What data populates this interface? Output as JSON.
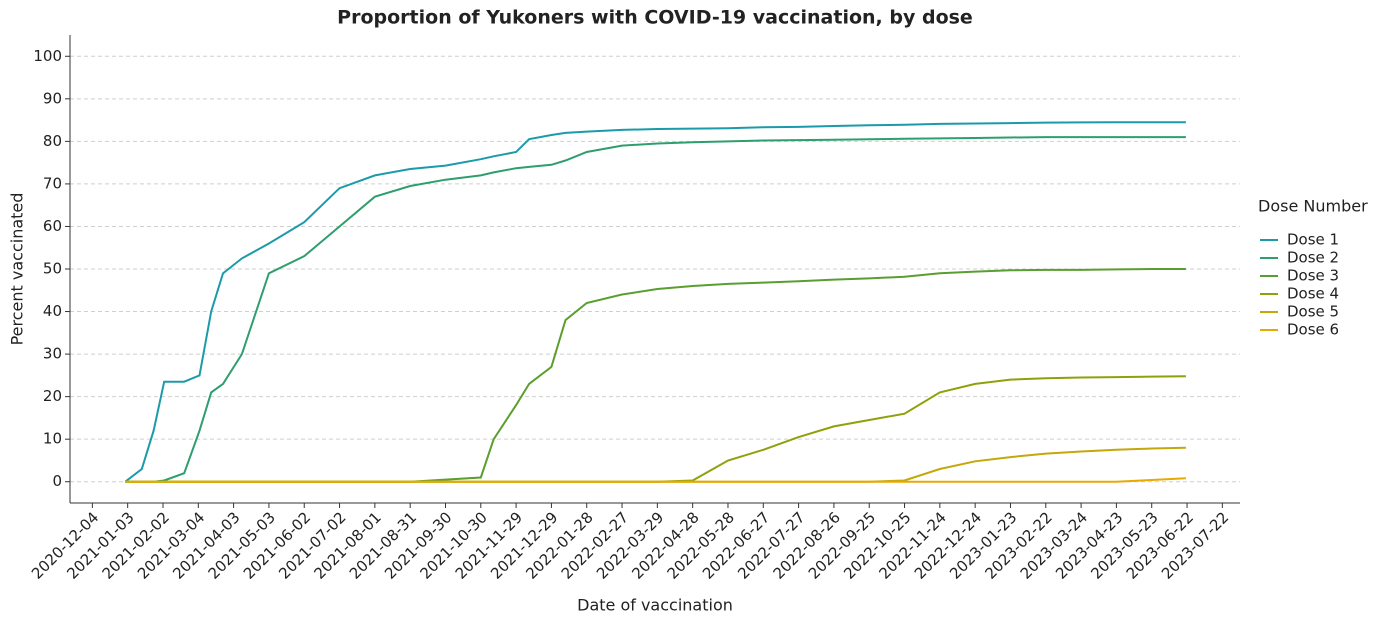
{
  "chart_data": {
    "type": "line",
    "title": "Proportion of Yukoners with COVID-19 vaccination, by dose",
    "x_label": "Date of vaccination",
    "y_label": "Percent vaccinated",
    "legend_title": "Dose Number",
    "legend": "right",
    "grid": true,
    "x": [
      "2021-01-01",
      "2021-01-15",
      "2021-01-25",
      "2021-02-03",
      "2021-02-20",
      "2021-03-05",
      "2021-03-15",
      "2021-03-25",
      "2021-04-10",
      "2021-05-03",
      "2021-06-02",
      "2021-07-02",
      "2021-08-01",
      "2021-08-31",
      "2021-09-30",
      "2021-10-30",
      "2021-11-10",
      "2021-11-29",
      "2021-12-10",
      "2021-12-29",
      "2022-01-10",
      "2022-01-28",
      "2022-02-27",
      "2022-03-29",
      "2022-04-28",
      "2022-05-28",
      "2022-06-27",
      "2022-07-27",
      "2022-08-26",
      "2022-09-25",
      "2022-10-25",
      "2022-11-24",
      "2022-12-24",
      "2023-01-23",
      "2023-02-22",
      "2023-03-24",
      "2023-04-23",
      "2023-05-23",
      "2023-06-21"
    ],
    "series": [
      {
        "name": "Dose 1",
        "color": "#1b9aaa",
        "values": [
          0,
          3,
          12,
          23.5,
          23.5,
          25,
          40,
          49,
          52.5,
          56,
          61,
          69,
          72,
          73.5,
          74.3,
          75.8,
          76.5,
          77.5,
          80.5,
          81.5,
          82,
          82.3,
          82.7,
          82.9,
          83,
          83.1,
          83.3,
          83.4,
          83.6,
          83.8,
          83.9,
          84.1,
          84.2,
          84.3,
          84.4,
          84.45,
          84.5,
          84.5,
          84.5
        ]
      },
      {
        "name": "Dose 2",
        "color": "#2e9e6e",
        "values": [
          0,
          0,
          0,
          0.3,
          2,
          12,
          21,
          23,
          30,
          49,
          53,
          60,
          67,
          69.5,
          71,
          72,
          72.7,
          73.7,
          74,
          74.5,
          75.5,
          77.5,
          79,
          79.5,
          79.8,
          80,
          80.2,
          80.3,
          80.4,
          80.5,
          80.6,
          80.7,
          80.8,
          80.9,
          81,
          81,
          81,
          81,
          81
        ]
      },
      {
        "name": "Dose 3",
        "color": "#5a9e2f",
        "values": [
          0,
          0,
          0,
          0,
          0,
          0,
          0,
          0,
          0,
          0,
          0,
          0,
          0,
          0,
          0.5,
          1,
          10,
          18,
          23,
          27,
          38,
          42,
          44,
          45.3,
          46,
          46.5,
          46.8,
          47.1,
          47.5,
          47.8,
          48.2,
          49,
          49.4,
          49.7,
          49.8,
          49.8,
          49.9,
          50,
          50
        ]
      },
      {
        "name": "Dose 4",
        "color": "#8fa10a",
        "values": [
          0,
          0,
          0,
          0,
          0,
          0,
          0,
          0,
          0,
          0,
          0,
          0,
          0,
          0,
          0,
          0,
          0,
          0,
          0,
          0,
          0,
          0,
          0,
          0,
          0.3,
          5,
          7.5,
          10.5,
          13,
          14.5,
          16,
          21,
          23,
          24,
          24.3,
          24.5,
          24.6,
          24.7,
          24.8
        ]
      },
      {
        "name": "Dose 5",
        "color": "#c4a80a",
        "values": [
          0,
          0,
          0,
          0,
          0,
          0,
          0,
          0,
          0,
          0,
          0,
          0,
          0,
          0,
          0,
          0,
          0,
          0,
          0,
          0,
          0,
          0,
          0,
          0,
          0,
          0,
          0,
          0,
          0,
          0,
          0.3,
          3,
          4.8,
          5.8,
          6.6,
          7.1,
          7.5,
          7.8,
          8
        ]
      },
      {
        "name": "Dose 6",
        "color": "#e8a900",
        "values": [
          0,
          0,
          0,
          0,
          0,
          0,
          0,
          0,
          0,
          0,
          0,
          0,
          0,
          0,
          0,
          0,
          0,
          0,
          0,
          0,
          0,
          0,
          0,
          0,
          0,
          0,
          0,
          0,
          0,
          0,
          0,
          0,
          0,
          0,
          0,
          0,
          0,
          0.4,
          0.8
        ]
      }
    ],
    "xlim": [
      "2020-11-15",
      "2023-08-06"
    ],
    "xticks": [
      "2020-12-04",
      "2021-01-03",
      "2021-02-02",
      "2021-03-04",
      "2021-04-03",
      "2021-05-03",
      "2021-06-02",
      "2021-07-02",
      "2021-08-01",
      "2021-08-31",
      "2021-09-30",
      "2021-10-30",
      "2021-11-29",
      "2021-12-29",
      "2022-01-28",
      "2022-02-27",
      "2022-03-29",
      "2022-04-28",
      "2022-05-28",
      "2022-06-27",
      "2022-07-27",
      "2022-08-26",
      "2022-09-25",
      "2022-10-25",
      "2022-11-24",
      "2022-12-24",
      "2023-01-23",
      "2023-02-22",
      "2023-03-24",
      "2023-04-23",
      "2023-05-23",
      "2023-06-22",
      "2023-07-22"
    ],
    "ylim": [
      -5,
      105
    ],
    "yticks": [
      0,
      10,
      20,
      30,
      40,
      50,
      60,
      70,
      80,
      90,
      100
    ]
  }
}
